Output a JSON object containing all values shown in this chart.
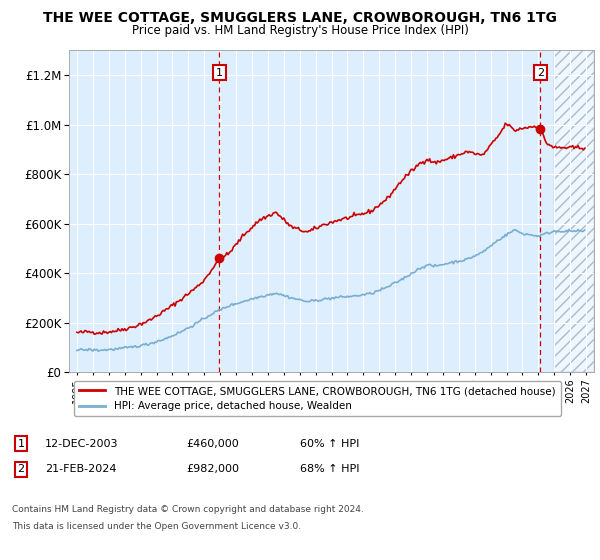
{
  "title": "THE WEE COTTAGE, SMUGGLERS LANE, CROWBOROUGH, TN6 1TG",
  "subtitle": "Price paid vs. HM Land Registry's House Price Index (HPI)",
  "legend_line1": "THE WEE COTTAGE, SMUGGLERS LANE, CROWBOROUGH, TN6 1TG (detached house)",
  "legend_line2": "HPI: Average price, detached house, Wealden",
  "annotation1": {
    "label": "1",
    "date": "12-DEC-2003",
    "price": 460000,
    "hpi": "60% ↑ HPI",
    "x": 2003.95
  },
  "annotation2": {
    "label": "2",
    "date": "21-FEB-2024",
    "price": 982000,
    "hpi": "68% ↑ HPI",
    "x": 2024.12
  },
  "footer1": "Contains HM Land Registry data © Crown copyright and database right 2024.",
  "footer2": "This data is licensed under the Open Government Licence v3.0.",
  "red_color": "#cc0000",
  "blue_color": "#7aaed0",
  "bg_color": "#ddeeff",
  "hatch_color": "#aabbcc",
  "grid_color": "#ffffff",
  "ylim": [
    0,
    1300000
  ],
  "xlim": [
    1994.5,
    2027.5
  ],
  "future_start": 2025.0
}
